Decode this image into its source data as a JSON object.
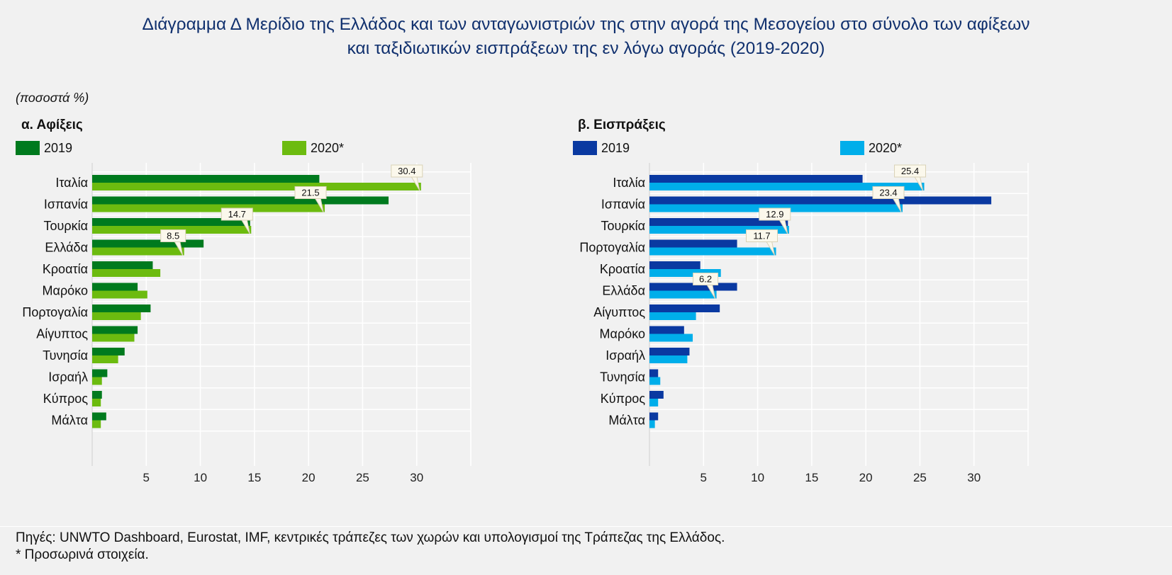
{
  "title": {
    "line1": "Διάγραμμα Δ Μερίδιο της Ελλάδος και των ανταγωνιστριών της στην αγορά της Μεσογείου στο σύνολο των αφίξεων",
    "line2": "και ταξιδιωτικών εισπράξεων της εν λόγω αγοράς (2019-2020)"
  },
  "unit_label": "(ποσοστά %)",
  "colors": {
    "arrivals_2019": "#007a1e",
    "arrivals_2020": "#6cbb0f",
    "receipts_2019": "#0a39a1",
    "receipts_2020": "#00aeea",
    "title": "#10306e"
  },
  "chart_data": [
    {
      "type": "bar",
      "orientation": "horizontal",
      "title": "α. Αφίξεις",
      "categories": [
        "Ιταλία",
        "Ισπανία",
        "Τουρκία",
        "Ελλάδα",
        "Κροατία",
        "Μαρόκο",
        "Πορτογαλία",
        "Αίγυπτος",
        "Τυνησία",
        "Ισραήλ",
        "Κύπρος",
        "Μάλτα"
      ],
      "series": [
        {
          "name": "2019",
          "color": "#007a1e",
          "values": [
            21.0,
            27.4,
            14.6,
            10.3,
            5.6,
            4.2,
            5.4,
            4.2,
            3.0,
            1.4,
            0.9,
            1.3
          ]
        },
        {
          "name": "2020*",
          "color": "#6cbb0f",
          "values": [
            30.4,
            21.5,
            14.7,
            8.5,
            6.3,
            5.1,
            4.5,
            3.9,
            2.4,
            0.9,
            0.8,
            0.8
          ]
        }
      ],
      "data_labels": [
        {
          "category": "Ιταλία",
          "series": "2020*",
          "text": "30.4"
        },
        {
          "category": "Ισπανία",
          "series": "2020*",
          "text": "21.5"
        },
        {
          "category": "Τουρκία",
          "series": "2020*",
          "text": "14.7"
        },
        {
          "category": "Ελλάδα",
          "series": "2020*",
          "text": "8.5"
        }
      ],
      "xlim": [
        0,
        35
      ],
      "xticks": [
        5,
        10,
        15,
        20,
        25,
        30
      ],
      "grid": true,
      "legend": "top"
    },
    {
      "type": "bar",
      "orientation": "horizontal",
      "title": "β. Εισπράξεις",
      "categories": [
        "Ιταλία",
        "Ισπανία",
        "Τουρκία",
        "Πορτογαλία",
        "Κροατία",
        "Ελλάδα",
        "Αίγυπτος",
        "Μαρόκο",
        "Ισραήλ",
        "Τυνησία",
        "Κύπρος",
        "Μάλτα"
      ],
      "series": [
        {
          "name": "2019",
          "color": "#0a39a1",
          "values": [
            19.7,
            31.6,
            12.8,
            8.1,
            4.7,
            8.1,
            6.5,
            3.2,
            3.7,
            0.8,
            1.3,
            0.8
          ]
        },
        {
          "name": "2020*",
          "color": "#00aeea",
          "values": [
            25.4,
            23.4,
            12.9,
            11.7,
            6.6,
            6.2,
            4.3,
            4.0,
            3.5,
            1.0,
            0.8,
            0.5
          ]
        }
      ],
      "data_labels": [
        {
          "category": "Ιταλία",
          "series": "2020*",
          "text": "25.4"
        },
        {
          "category": "Ισπανία",
          "series": "2020*",
          "text": "23.4"
        },
        {
          "category": "Τουρκία",
          "series": "2020*",
          "text": "12.9"
        },
        {
          "category": "Πορτογαλία",
          "series": "2020*",
          "text": "11.7"
        },
        {
          "category": "Ελλάδα",
          "series": "2020*",
          "text": "6.2"
        }
      ],
      "xlim": [
        0,
        35
      ],
      "xticks": [
        5,
        10,
        15,
        20,
        25,
        30
      ],
      "grid": true,
      "legend": "top"
    }
  ],
  "footer": {
    "source": "Πηγές: UNWTO Dashboard, Eurostat, IMF, κεντρικές τράπεζες των χωρών και υπολογισμοί της Τράπεζας της Ελλάδος.",
    "note": "* Προσωρινά στοιχεία."
  }
}
